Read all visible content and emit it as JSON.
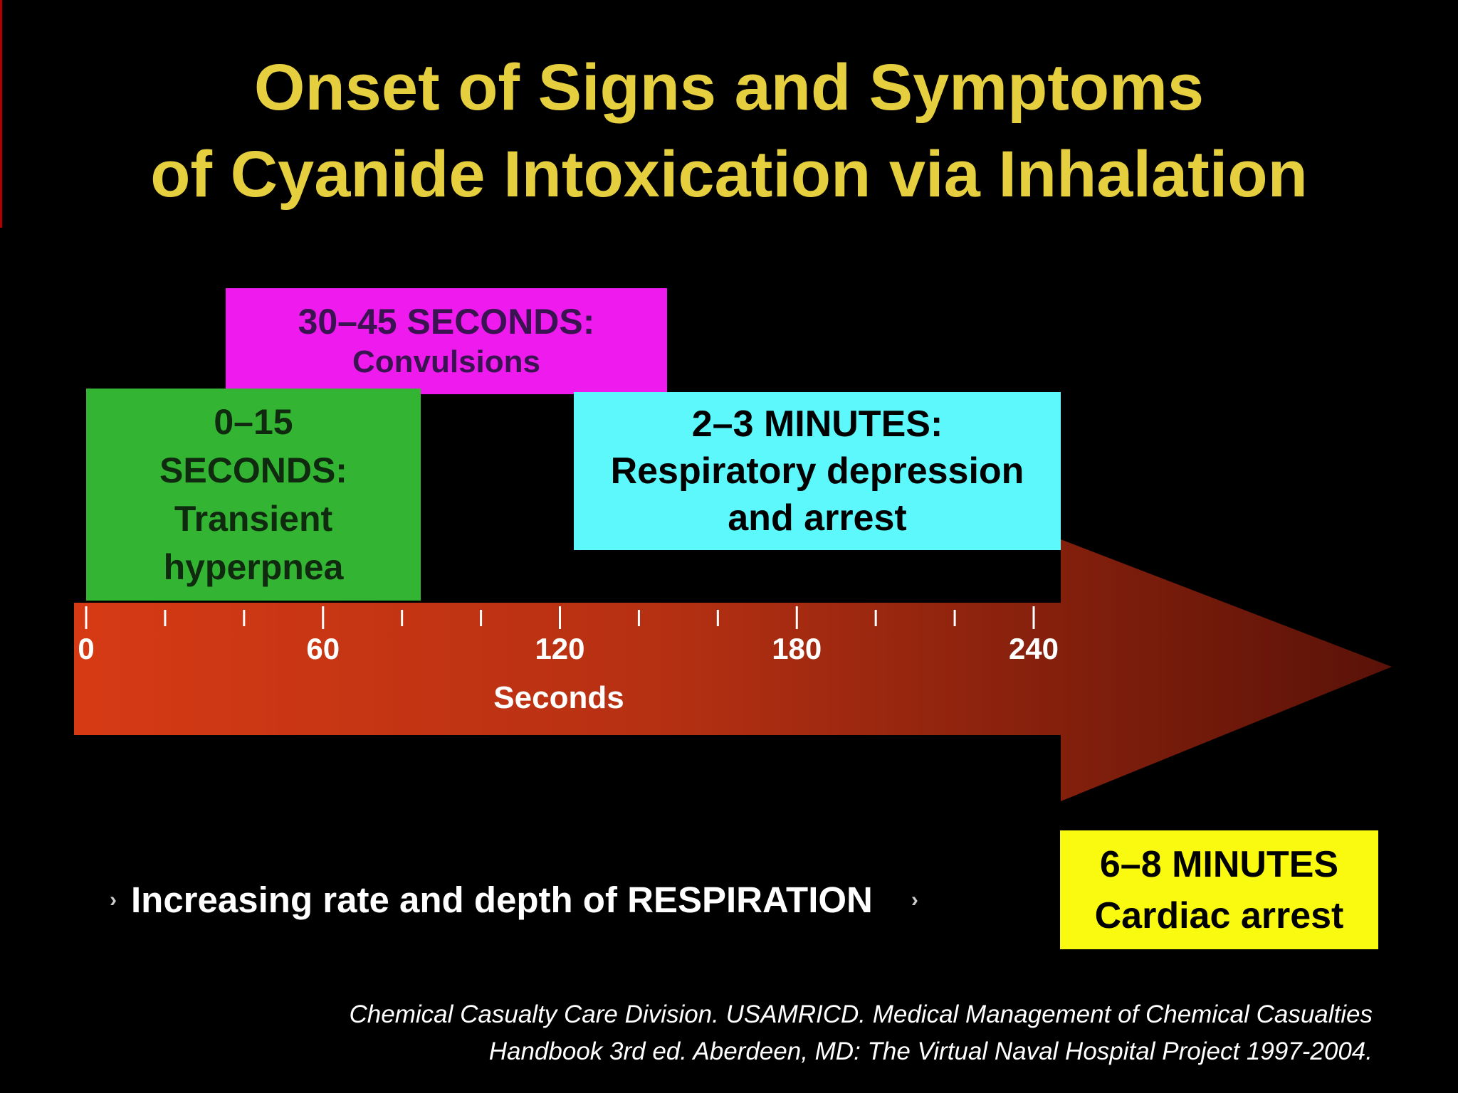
{
  "title": {
    "line1": "Onset of Signs and Symptoms",
    "line2": "of Cyanide Intoxication via Inhalation"
  },
  "phases": {
    "convulsions": {
      "time": "30–45 SECONDS:",
      "effect": "Convulsions",
      "color": "#ee1aee"
    },
    "hyperpnea": {
      "time_line1": "0–15",
      "time_line2": "SECONDS:",
      "effect_line1": "Transient",
      "effect_line2": "hyperpnea",
      "color": "#33b533"
    },
    "respiratory": {
      "time": "2–3 MINUTES:",
      "effect_line1": "Respiratory depression",
      "effect_line2": "and arrest",
      "color": "#5cf8fb"
    },
    "cardiac": {
      "time": "6–8 MINUTES",
      "effect": "Cardiac arrest",
      "color": "#fafa10"
    }
  },
  "axis": {
    "label": "Seconds",
    "min": 0,
    "max": 240,
    "major_ticks": [
      0,
      60,
      120,
      180,
      240
    ],
    "major_tick_labels": [
      "0",
      "60",
      "120",
      "180",
      "240"
    ],
    "minor_ticks": [
      20,
      40,
      80,
      100,
      140,
      160,
      200,
      220
    ],
    "arrow_color_start": "#d63a15",
    "arrow_color_end": "#5a1208"
  },
  "respiration_note": "Increasing rate and depth of RESPIRATION",
  "citation": {
    "line1": "Chemical Casualty Care Division. USAMRICD. Medical Management of Chemical Casualties",
    "line2": "Handbook 3rd ed. Aberdeen, MD: The Virtual Naval Hospital Project 1997-2004."
  }
}
